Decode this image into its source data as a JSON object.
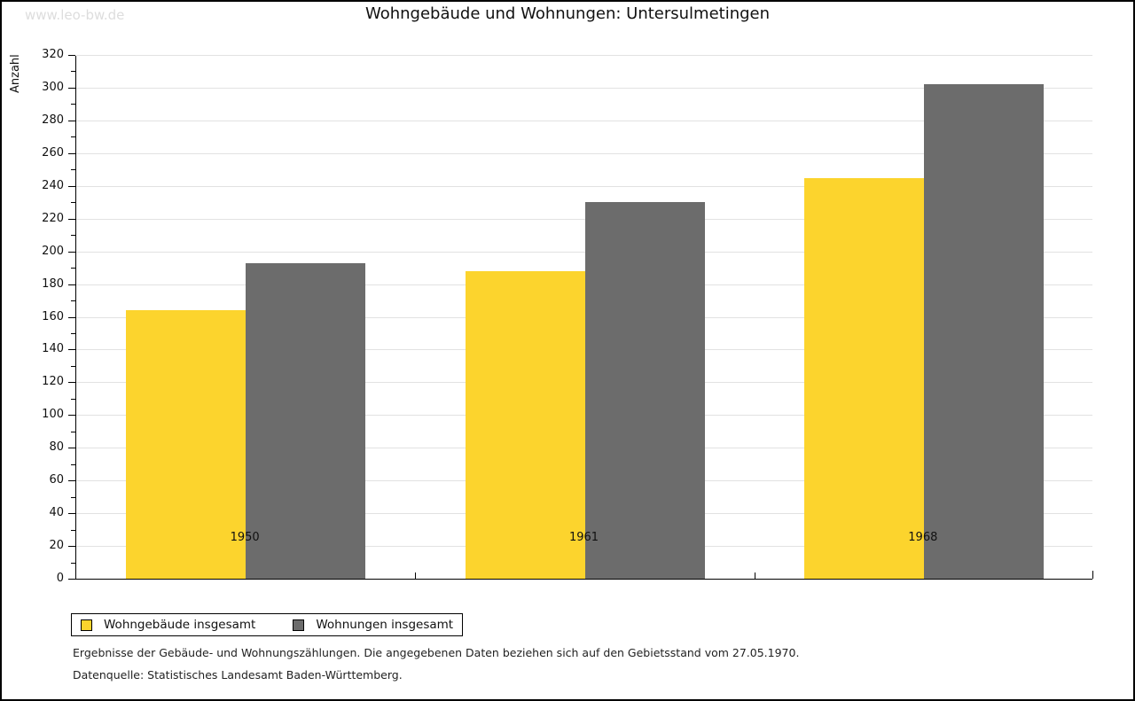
{
  "watermark": "www.leo-bw.de",
  "title": "Wohngebäude und Wohnungen: Untersulmetingen",
  "chart_data": {
    "type": "bar",
    "title": "Wohngebäude und Wohnungen: Untersulmetingen",
    "ylabel": "Anzahl",
    "xlabel": "",
    "categories": [
      "1950",
      "1961",
      "1968"
    ],
    "series": [
      {
        "name": "Wohngebäude insgesamt",
        "color": "#FCD42D",
        "values": [
          164,
          188,
          245
        ]
      },
      {
        "name": "Wohnungen insgesamt",
        "color": "#6C6C6C",
        "values": [
          193,
          230,
          302
        ]
      }
    ],
    "ylim": [
      0,
      320
    ],
    "y_major_step": 20,
    "y_minor_step": 10,
    "grid": "horizontal",
    "gridline_color": "#e2e2e2",
    "legend_position": "bottom-left"
  },
  "footer": {
    "line1": "Ergebnisse der Gebäude- und Wohnungszählungen. Die angegebenen Daten beziehen sich auf den Gebietsstand vom 27.05.1970.",
    "line2": "Datenquelle: Statistisches Landesamt Baden-Württemberg."
  }
}
